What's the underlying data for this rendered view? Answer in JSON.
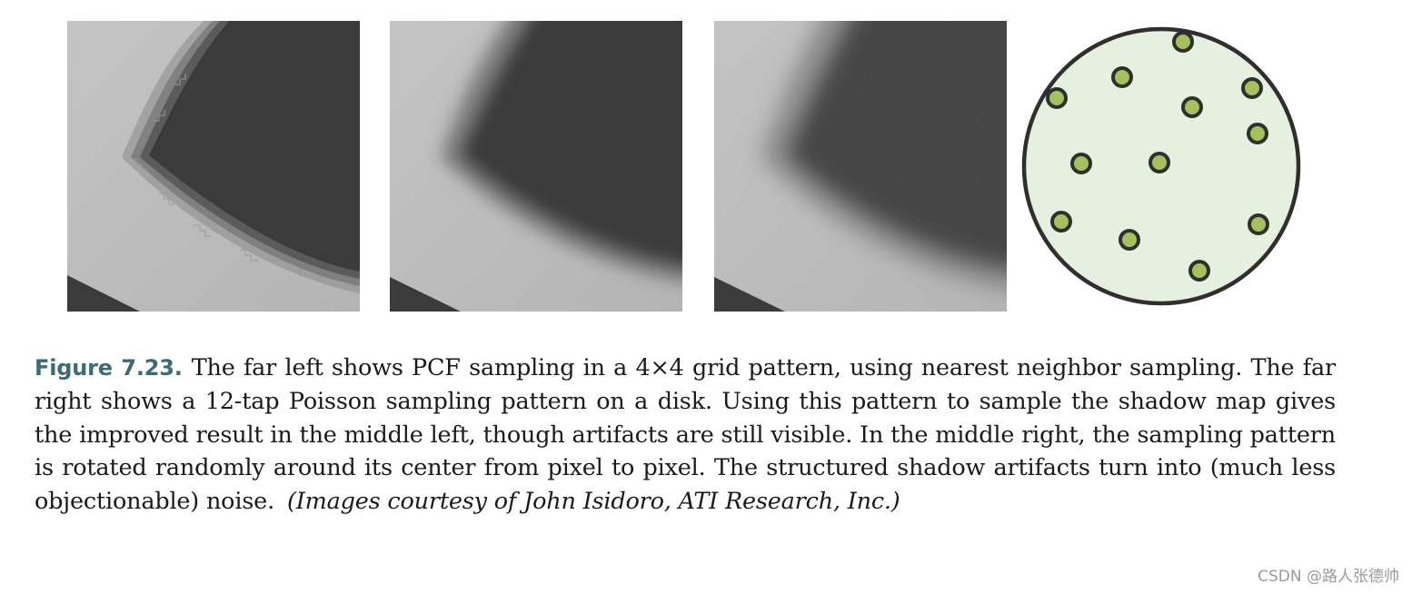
{
  "figure": {
    "label": "Figure 7.23.",
    "caption_text": "The far left shows PCF sampling in a 4×4 grid pattern, using nearest neighbor sampling. The far right shows a 12-tap Poisson sampling pattern on a disk. Using this pattern to sample the shadow map gives the improved result in the middle left, though artifacts are still visible. In the middle right, the sampling pattern is rotated randomly around its center from pixel to pixel. The structured shadow artifacts turn into (much less objectionable) noise.",
    "credit": "(Images courtesy of John Isidoro, ATI Research, Inc.)"
  },
  "panels": [
    {
      "id": "pcf-4x4-grid",
      "blur": "stepped"
    },
    {
      "id": "poisson-disk-fixed",
      "blur": "smooth"
    },
    {
      "id": "poisson-disk-rotated",
      "blur": "noisy"
    }
  ],
  "poisson_disk": {
    "tap_count": 12,
    "disk_fill": "#e6f0de",
    "tap_fill": "#a5c25a",
    "outline": "#2f2f2f"
  },
  "colors": {
    "shadow": "#3a3a3a",
    "lit_surface": "#b5b5b5",
    "figure_label": "#3d6b73"
  },
  "watermark": "CSDN @路人张德帅"
}
